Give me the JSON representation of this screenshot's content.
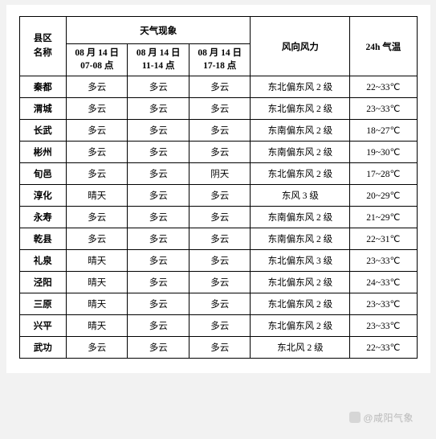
{
  "headers": {
    "region": "县区\n名称",
    "weather_group": "天气现象",
    "periods": [
      "08 月 14 日\n07-08 点",
      "08 月 14 日\n11-14 点",
      "08 月 14 日\n17-18 点"
    ],
    "wind": "风向风力",
    "temp": "24h 气温"
  },
  "rows": [
    {
      "region": "秦都",
      "p1": "多云",
      "p2": "多云",
      "p3": "多云",
      "wind": "东北偏东风 2 级",
      "temp": "22~33℃"
    },
    {
      "region": "渭城",
      "p1": "多云",
      "p2": "多云",
      "p3": "多云",
      "wind": "东北偏东风 2 级",
      "temp": "23~33℃"
    },
    {
      "region": "长武",
      "p1": "多云",
      "p2": "多云",
      "p3": "多云",
      "wind": "东南偏东风 2 级",
      "temp": "18~27℃"
    },
    {
      "region": "彬州",
      "p1": "多云",
      "p2": "多云",
      "p3": "多云",
      "wind": "东南偏东风 2 级",
      "temp": "19~30℃"
    },
    {
      "region": "旬邑",
      "p1": "多云",
      "p2": "多云",
      "p3": "阴天",
      "wind": "东北偏东风 2 级",
      "temp": "17~28℃"
    },
    {
      "region": "淳化",
      "p1": "晴天",
      "p2": "多云",
      "p3": "多云",
      "wind": "东风 3 级",
      "temp": "20~29℃"
    },
    {
      "region": "永寿",
      "p1": "多云",
      "p2": "多云",
      "p3": "多云",
      "wind": "东南偏东风 2 级",
      "temp": "21~29℃"
    },
    {
      "region": "乾县",
      "p1": "多云",
      "p2": "多云",
      "p3": "多云",
      "wind": "东南偏东风 2 级",
      "temp": "22~31℃"
    },
    {
      "region": "礼泉",
      "p1": "晴天",
      "p2": "多云",
      "p3": "多云",
      "wind": "东北偏东风 3 级",
      "temp": "23~33℃"
    },
    {
      "region": "泾阳",
      "p1": "晴天",
      "p2": "多云",
      "p3": "多云",
      "wind": "东北偏东风 2 级",
      "temp": "24~33℃"
    },
    {
      "region": "三原",
      "p1": "晴天",
      "p2": "多云",
      "p3": "多云",
      "wind": "东北偏东风 2 级",
      "temp": "23~33℃"
    },
    {
      "region": "兴平",
      "p1": "晴天",
      "p2": "多云",
      "p3": "多云",
      "wind": "东北偏东风 2 级",
      "temp": "23~33℃"
    },
    {
      "region": "武功",
      "p1": "多云",
      "p2": "多云",
      "p3": "多云",
      "wind": "东北风 2 级",
      "temp": "22~33℃"
    }
  ],
  "watermark": "@咸阳气象"
}
